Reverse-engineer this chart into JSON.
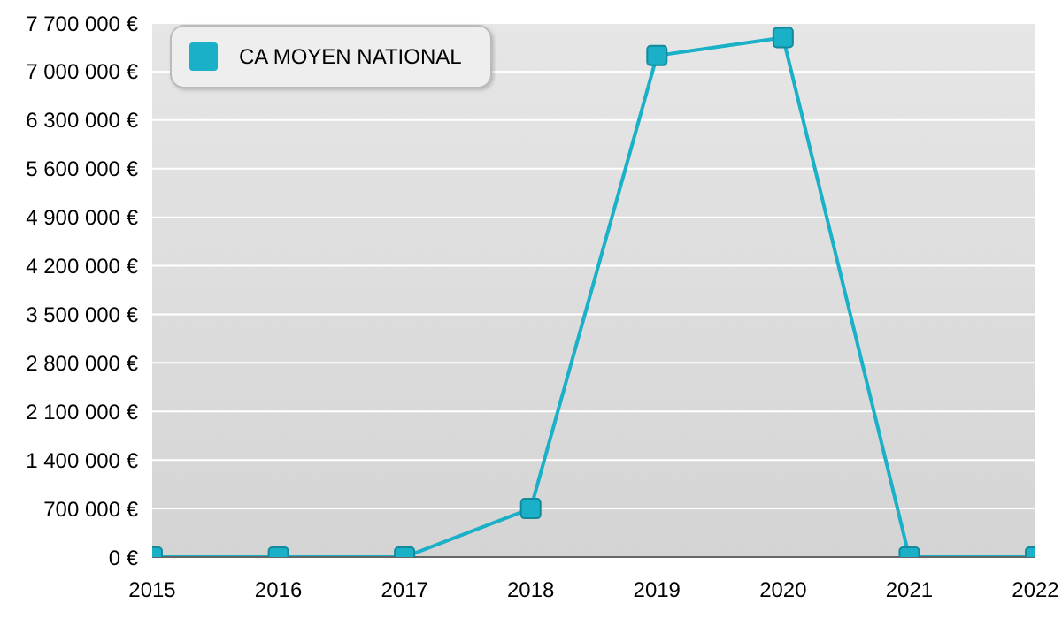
{
  "chart_data": {
    "type": "line",
    "x": [
      2015,
      2016,
      2017,
      2018,
      2019,
      2020,
      2021,
      2022
    ],
    "series": [
      {
        "name": "CA MOYEN NATIONAL",
        "color": "#1ab0c8",
        "values": [
          0,
          0,
          0,
          700000,
          7230000,
          7490000,
          0,
          0
        ]
      }
    ],
    "xlim": [
      2015,
      2022
    ],
    "xticks": [
      2015,
      2016,
      2017,
      2018,
      2019,
      2020,
      2021,
      2022
    ],
    "ylim": [
      0,
      7700000
    ],
    "yticks": [
      {
        "value": 0,
        "label": "0 €"
      },
      {
        "value": 700000,
        "label": "700 000 €"
      },
      {
        "value": 1400000,
        "label": "1 400 000 €"
      },
      {
        "value": 2100000,
        "label": "2 100 000 €"
      },
      {
        "value": 2800000,
        "label": "2 800 000 €"
      },
      {
        "value": 3500000,
        "label": "3 500 000 €"
      },
      {
        "value": 4200000,
        "label": "4 200 000 €"
      },
      {
        "value": 4900000,
        "label": "4 900 000 €"
      },
      {
        "value": 5600000,
        "label": "5 600 000 €"
      },
      {
        "value": 6300000,
        "label": "6 300 000 €"
      },
      {
        "value": 7000000,
        "label": "7 000 000 €"
      },
      {
        "value": 7700000,
        "label": "7 700 000 €"
      }
    ],
    "grid": "y",
    "legend": "top left",
    "marker": "square",
    "line_style": "solid"
  }
}
